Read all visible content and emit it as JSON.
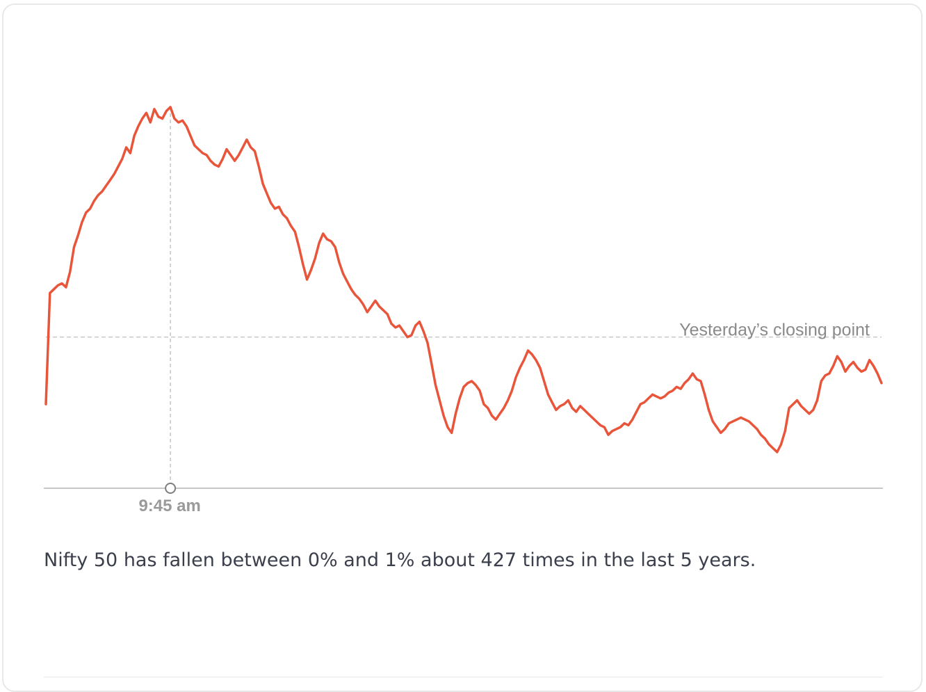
{
  "chart_data": {
    "type": "line",
    "title": "",
    "xlabel": "",
    "ylabel": "",
    "series": [
      {
        "color": "#e8553a",
        "values": [
          0.0,
          0.58,
          0.6,
          0.62,
          0.63,
          0.61,
          0.69,
          0.82,
          0.88,
          0.95,
          1.0,
          1.02,
          1.06,
          1.09,
          1.11,
          1.14,
          1.17,
          1.2,
          1.24,
          1.28,
          1.34,
          1.31,
          1.4,
          1.45,
          1.49,
          1.52,
          1.47,
          1.54,
          1.5,
          1.49,
          1.53,
          1.55,
          1.49,
          1.47,
          1.48,
          1.45,
          1.4,
          1.35,
          1.33,
          1.31,
          1.3,
          1.27,
          1.25,
          1.24,
          1.28,
          1.33,
          1.3,
          1.27,
          1.3,
          1.34,
          1.38,
          1.34,
          1.32,
          1.24,
          1.15,
          1.1,
          1.05,
          1.02,
          1.03,
          0.99,
          0.97,
          0.93,
          0.9,
          0.82,
          0.73,
          0.65,
          0.7,
          0.76,
          0.84,
          0.89,
          0.86,
          0.85,
          0.82,
          0.74,
          0.68,
          0.64,
          0.6,
          0.57,
          0.55,
          0.52,
          0.48,
          0.51,
          0.54,
          0.51,
          0.49,
          0.47,
          0.42,
          0.4,
          0.41,
          0.38,
          0.35,
          0.36,
          0.41,
          0.43,
          0.38,
          0.32,
          0.21,
          0.1,
          0.02,
          -0.06,
          -0.12,
          -0.15,
          -0.05,
          0.03,
          0.09,
          0.11,
          0.12,
          0.1,
          0.07,
          0.0,
          -0.02,
          -0.06,
          -0.08,
          -0.05,
          -0.02,
          0.02,
          0.07,
          0.14,
          0.19,
          0.23,
          0.28,
          0.26,
          0.23,
          0.19,
          0.12,
          0.05,
          0.01,
          -0.03,
          -0.01,
          0.0,
          0.02,
          -0.02,
          -0.04,
          -0.01,
          -0.03,
          -0.05,
          -0.07,
          -0.09,
          -0.11,
          -0.12,
          -0.16,
          -0.14,
          -0.13,
          -0.12,
          -0.1,
          -0.11,
          -0.08,
          -0.04,
          0.0,
          0.01,
          0.03,
          0.05,
          0.04,
          0.03,
          0.04,
          0.06,
          0.07,
          0.09,
          0.08,
          0.11,
          0.13,
          0.16,
          0.13,
          0.12,
          0.05,
          -0.03,
          -0.09,
          -0.12,
          -0.15,
          -0.13,
          -0.1,
          -0.09,
          -0.08,
          -0.07,
          -0.08,
          -0.09,
          -0.11,
          -0.13,
          -0.16,
          -0.18,
          -0.21,
          -0.23,
          -0.25,
          -0.21,
          -0.14,
          -0.02,
          0.0,
          0.02,
          -0.01,
          -0.03,
          -0.05,
          -0.03,
          0.02,
          0.12,
          0.15,
          0.16,
          0.2,
          0.25,
          0.22,
          0.17,
          0.2,
          0.22,
          0.19,
          0.17,
          0.18,
          0.23,
          0.2,
          0.16,
          0.11
        ]
      }
    ],
    "reference_line": {
      "label": "Yesterday’s closing point",
      "value": 0.35
    },
    "marker": {
      "label": "9:45 am"
    },
    "grid": false,
    "legend": "none"
  },
  "caption": "Nifty 50 has fallen between 0% and 1% about 427 times in the last 5 years."
}
